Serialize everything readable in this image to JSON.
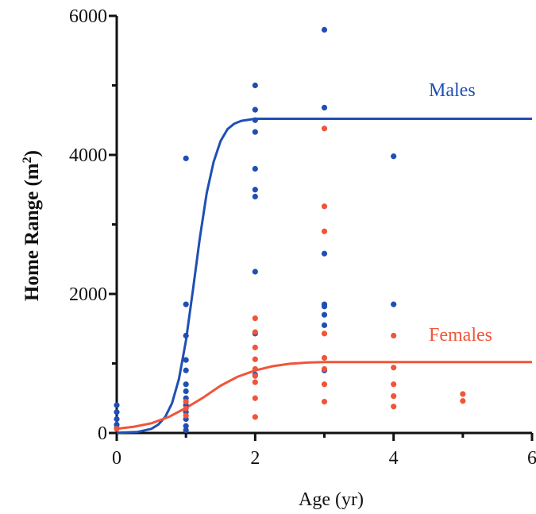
{
  "chart_data": {
    "type": "scatter",
    "title": "",
    "xlabel": "Age (yr)",
    "ylabel": {
      "main": "Home Range (m",
      "sup": "2",
      "close": ")"
    },
    "xlim": [
      0,
      6
    ],
    "ylim": [
      0,
      6000
    ],
    "xticks": [
      0,
      2,
      4,
      6
    ],
    "yticks": [
      0,
      2000,
      4000,
      6000
    ],
    "x_minor_ticks": [
      1,
      3,
      5
    ],
    "y_minor_ticks": [
      1000,
      3000,
      5000
    ],
    "grid": false,
    "legend": "inline labels",
    "series": [
      {
        "name": "Males",
        "color": "#1f4fb4",
        "points": [
          {
            "x": 0,
            "y": 400
          },
          {
            "x": 0,
            "y": 300
          },
          {
            "x": 0,
            "y": 200
          },
          {
            "x": 0,
            "y": 120
          },
          {
            "x": 0,
            "y": 70
          },
          {
            "x": 1,
            "y": 3950
          },
          {
            "x": 1,
            "y": 1850
          },
          {
            "x": 1,
            "y": 1400
          },
          {
            "x": 1,
            "y": 1050
          },
          {
            "x": 1,
            "y": 900
          },
          {
            "x": 1,
            "y": 700
          },
          {
            "x": 1,
            "y": 600
          },
          {
            "x": 1,
            "y": 500
          },
          {
            "x": 1,
            "y": 400
          },
          {
            "x": 1,
            "y": 300
          },
          {
            "x": 1,
            "y": 200
          },
          {
            "x": 1,
            "y": 100
          },
          {
            "x": 1,
            "y": 40
          },
          {
            "x": 2,
            "y": 5000
          },
          {
            "x": 2,
            "y": 4650
          },
          {
            "x": 2,
            "y": 4500
          },
          {
            "x": 2,
            "y": 4330
          },
          {
            "x": 2,
            "y": 3800
          },
          {
            "x": 2,
            "y": 3500
          },
          {
            "x": 2,
            "y": 3400
          },
          {
            "x": 2,
            "y": 2320
          },
          {
            "x": 2,
            "y": 1430
          },
          {
            "x": 2,
            "y": 840
          },
          {
            "x": 3,
            "y": 5800
          },
          {
            "x": 3,
            "y": 4680
          },
          {
            "x": 3,
            "y": 2580
          },
          {
            "x": 3,
            "y": 1850
          },
          {
            "x": 3,
            "y": 1820
          },
          {
            "x": 3,
            "y": 1700
          },
          {
            "x": 3,
            "y": 1550
          },
          {
            "x": 3,
            "y": 900
          },
          {
            "x": 4,
            "y": 3980
          },
          {
            "x": 4,
            "y": 1850
          }
        ],
        "fit_curve": [
          {
            "x": 0,
            "y": 2
          },
          {
            "x": 0.3,
            "y": 15
          },
          {
            "x": 0.5,
            "y": 60
          },
          {
            "x": 0.6,
            "y": 120
          },
          {
            "x": 0.7,
            "y": 230
          },
          {
            "x": 0.8,
            "y": 430
          },
          {
            "x": 0.9,
            "y": 780
          },
          {
            "x": 1.0,
            "y": 1330
          },
          {
            "x": 1.1,
            "y": 2050
          },
          {
            "x": 1.2,
            "y": 2800
          },
          {
            "x": 1.3,
            "y": 3450
          },
          {
            "x": 1.4,
            "y": 3900
          },
          {
            "x": 1.5,
            "y": 4200
          },
          {
            "x": 1.6,
            "y": 4370
          },
          {
            "x": 1.7,
            "y": 4450
          },
          {
            "x": 1.8,
            "y": 4490
          },
          {
            "x": 2.0,
            "y": 4520
          },
          {
            "x": 6.0,
            "y": 4520
          }
        ]
      },
      {
        "name": "Females",
        "color": "#f0553a",
        "points": [
          {
            "x": 0,
            "y": 60
          },
          {
            "x": 1,
            "y": 450
          },
          {
            "x": 1,
            "y": 350
          },
          {
            "x": 1,
            "y": 250
          },
          {
            "x": 2,
            "y": 1650
          },
          {
            "x": 2,
            "y": 1450
          },
          {
            "x": 2,
            "y": 1230
          },
          {
            "x": 2,
            "y": 1060
          },
          {
            "x": 2,
            "y": 920
          },
          {
            "x": 2,
            "y": 820
          },
          {
            "x": 2,
            "y": 730
          },
          {
            "x": 2,
            "y": 500
          },
          {
            "x": 2,
            "y": 230
          },
          {
            "x": 3,
            "y": 4380
          },
          {
            "x": 3,
            "y": 3260
          },
          {
            "x": 3,
            "y": 2900
          },
          {
            "x": 3,
            "y": 1430
          },
          {
            "x": 3,
            "y": 1080
          },
          {
            "x": 3,
            "y": 920
          },
          {
            "x": 3,
            "y": 700
          },
          {
            "x": 3,
            "y": 450
          },
          {
            "x": 4,
            "y": 1400
          },
          {
            "x": 4,
            "y": 940
          },
          {
            "x": 4,
            "y": 700
          },
          {
            "x": 4,
            "y": 530
          },
          {
            "x": 4,
            "y": 380
          },
          {
            "x": 5,
            "y": 560
          },
          {
            "x": 5,
            "y": 460
          }
        ],
        "fit_curve": [
          {
            "x": 0,
            "y": 60
          },
          {
            "x": 0.25,
            "y": 90
          },
          {
            "x": 0.5,
            "y": 140
          },
          {
            "x": 0.75,
            "y": 230
          },
          {
            "x": 1.0,
            "y": 360
          },
          {
            "x": 1.25,
            "y": 510
          },
          {
            "x": 1.5,
            "y": 680
          },
          {
            "x": 1.75,
            "y": 810
          },
          {
            "x": 2.0,
            "y": 900
          },
          {
            "x": 2.25,
            "y": 960
          },
          {
            "x": 2.5,
            "y": 995
          },
          {
            "x": 2.75,
            "y": 1012
          },
          {
            "x": 3.0,
            "y": 1020
          },
          {
            "x": 6.0,
            "y": 1020
          }
        ]
      }
    ]
  }
}
